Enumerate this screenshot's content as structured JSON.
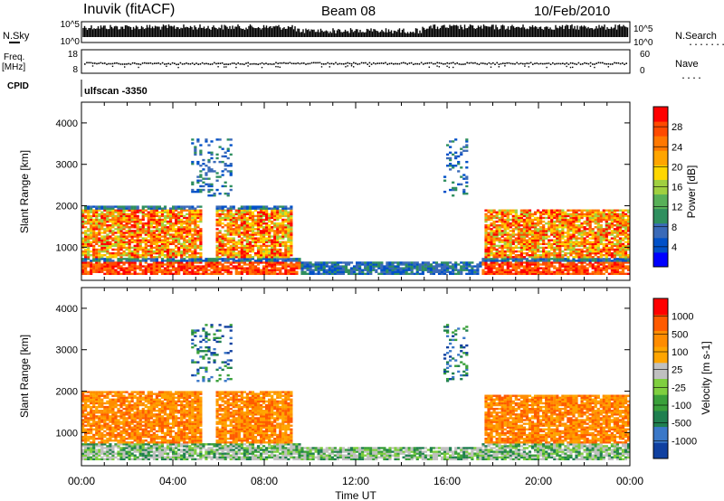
{
  "header": {
    "station": "Inuvik (fitACF)",
    "beam": "Beam 08",
    "date": "10/Feb/2010",
    "scan_label": "ulfscan -3350"
  },
  "left_labels": {
    "nsky": "N.Sky",
    "freq": "Freq.",
    "freq_unit": "[MHz]",
    "cpid": "CPID"
  },
  "right_labels": {
    "nsearch": "N.Search",
    "nave": "Nave"
  },
  "colors": {
    "power": [
      "#0000ff",
      "#0050c8",
      "#3a6ab8",
      "#2f8f5f",
      "#58b058",
      "#a0d040",
      "#ffd700",
      "#ffa500",
      "#ff7800",
      "#ff4a00",
      "#ff0000"
    ],
    "velocity": [
      "#1040a0",
      "#3a78c8",
      "#1f7f4f",
      "#3aa03a",
      "#7fcf3f",
      "#c0c0c0",
      "#ffa500",
      "#ff8c00",
      "#ff5a00",
      "#ff0000"
    ],
    "noise_fill": "#000000"
  },
  "chart_data": [
    {
      "type": "line",
      "name": "noise",
      "left_ticks": [
        "10^5",
        "10^0"
      ],
      "right_ticks": [
        "10^5",
        "10^0"
      ]
    },
    {
      "type": "scatter",
      "name": "frequency",
      "left_ticks": [
        "18",
        "8"
      ],
      "right_ticks": [
        "60",
        "0"
      ]
    },
    {
      "type": "heatmap",
      "name": "power",
      "ylabel": "Slant Range [km]",
      "ylim": [
        200,
        4500
      ],
      "yticks": [
        "4000",
        "3000",
        "2000",
        "1000"
      ],
      "colorbar": {
        "label": "Power [dB]",
        "ticks": [
          "28",
          "24",
          "20",
          "16",
          "12",
          "8",
          "4"
        ],
        "range": [
          0,
          30
        ]
      },
      "xticks": [
        "00:00",
        "04:00",
        "08:00",
        "12:00",
        "16:00",
        "20:00",
        "00:00"
      ],
      "xlim_hours": [
        0,
        24
      ]
    },
    {
      "type": "heatmap",
      "name": "velocity",
      "ylabel": "Slant Range [km]",
      "ylim": [
        200,
        4500
      ],
      "yticks": [
        "4000",
        "3000",
        "2000",
        "1000"
      ],
      "colorbar": {
        "label": "Velocity [m s-1]",
        "ticks": [
          "1000",
          "500",
          "100",
          "25",
          "-25",
          "-100",
          "-500",
          "-1000"
        ]
      },
      "xticks": [
        "00:00",
        "04:00",
        "08:00",
        "12:00",
        "16:00",
        "20:00",
        "00:00"
      ],
      "xlabel": "Time UT",
      "xlim_hours": [
        0,
        24
      ]
    }
  ]
}
